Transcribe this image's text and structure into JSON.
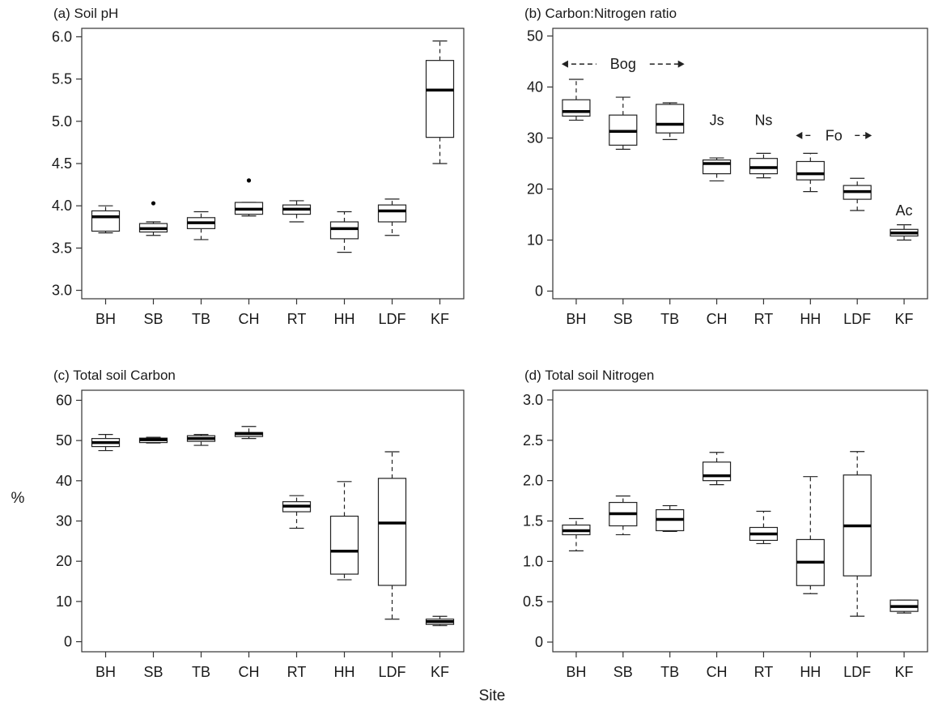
{
  "figure": {
    "shared_x_label": "Site",
    "shared_y_label": "%"
  },
  "chart_data": [
    {
      "type": "box",
      "title": "(a) Soil pH",
      "categories": [
        "BH",
        "SB",
        "TB",
        "CH",
        "RT",
        "HH",
        "LDF",
        "KF"
      ],
      "ylim": [
        2.9,
        6.1
      ],
      "yticks": [
        "3.0",
        "3.5",
        "4.0",
        "4.5",
        "5.0",
        "5.5",
        "6.0"
      ],
      "boxes": [
        {
          "whisker_low": 3.68,
          "q1": 3.7,
          "median": 3.87,
          "q3": 3.94,
          "whisker_high": 4.0
        },
        {
          "whisker_low": 3.65,
          "q1": 3.69,
          "median": 3.73,
          "q3": 3.79,
          "whisker_high": 3.81,
          "outliers": [
            4.03
          ]
        },
        {
          "whisker_low": 3.6,
          "q1": 3.73,
          "median": 3.8,
          "q3": 3.86,
          "whisker_high": 3.93
        },
        {
          "whisker_low": 3.88,
          "q1": 3.9,
          "median": 3.96,
          "q3": 4.04,
          "whisker_high": 4.04,
          "outliers": [
            4.3
          ]
        },
        {
          "whisker_low": 3.81,
          "q1": 3.9,
          "median": 3.96,
          "q3": 4.01,
          "whisker_high": 4.06
        },
        {
          "whisker_low": 3.45,
          "q1": 3.61,
          "median": 3.73,
          "q3": 3.81,
          "whisker_high": 3.93
        },
        {
          "whisker_low": 3.65,
          "q1": 3.81,
          "median": 3.94,
          "q3": 4.01,
          "whisker_high": 4.08
        },
        {
          "whisker_low": 4.5,
          "q1": 4.81,
          "median": 5.37,
          "q3": 5.72,
          "whisker_high": 5.95
        }
      ],
      "annotations": []
    },
    {
      "type": "box",
      "title": "(b) Carbon:Nitrogen ratio",
      "categories": [
        "BH",
        "SB",
        "TB",
        "CH",
        "RT",
        "HH",
        "LDF",
        "KF"
      ],
      "ylim": [
        -1.5,
        51.5
      ],
      "yticks": [
        "0",
        "10",
        "20",
        "30",
        "40",
        "50"
      ],
      "boxes": [
        {
          "whisker_low": 33.5,
          "q1": 34.3,
          "median": 35.2,
          "q3": 37.5,
          "whisker_high": 41.5
        },
        {
          "whisker_low": 27.8,
          "q1": 28.6,
          "median": 31.3,
          "q3": 34.5,
          "whisker_high": 38.0
        },
        {
          "whisker_low": 29.7,
          "q1": 31.0,
          "median": 32.7,
          "q3": 36.6,
          "whisker_high": 36.9
        },
        {
          "whisker_low": 21.6,
          "q1": 23.0,
          "median": 25.0,
          "q3": 25.7,
          "whisker_high": 26.1
        },
        {
          "whisker_low": 22.2,
          "q1": 23.0,
          "median": 24.2,
          "q3": 26.0,
          "whisker_high": 27.0
        },
        {
          "whisker_low": 19.5,
          "q1": 21.8,
          "median": 23.0,
          "q3": 25.4,
          "whisker_high": 27.0
        },
        {
          "whisker_low": 15.8,
          "q1": 18.0,
          "median": 19.5,
          "q3": 20.7,
          "whisker_high": 22.1
        },
        {
          "whisker_low": 10.0,
          "q1": 10.8,
          "median": 11.4,
          "q3": 12.1,
          "whisker_high": 13.0
        }
      ],
      "annotations": [
        {
          "text": "Bog",
          "x_from": "BH",
          "x_to": "TB",
          "y": 44.5,
          "arrows": true
        },
        {
          "text": "Js",
          "x": "CH",
          "y": 33.5
        },
        {
          "text": "Ns",
          "x": "RT",
          "y": 33.5
        },
        {
          "text": "Fo",
          "x_from": "HH",
          "x_to": "LDF",
          "y": 30.5,
          "arrows": true
        },
        {
          "text": "Ac",
          "x": "KF",
          "y": 15.8
        }
      ]
    },
    {
      "type": "box",
      "title": "(c) Total soil Carbon",
      "categories": [
        "BH",
        "SB",
        "TB",
        "CH",
        "RT",
        "HH",
        "LDF",
        "KF"
      ],
      "ylim": [
        -2.5,
        62.5
      ],
      "yticks": [
        "0",
        "10",
        "20",
        "30",
        "40",
        "50",
        "60"
      ],
      "boxes": [
        {
          "whisker_low": 47.5,
          "q1": 48.5,
          "median": 49.5,
          "q3": 50.5,
          "whisker_high": 51.5
        },
        {
          "whisker_low": 49.4,
          "q1": 49.5,
          "median": 50.2,
          "q3": 50.6,
          "whisker_high": 50.8
        },
        {
          "whisker_low": 48.8,
          "q1": 49.8,
          "median": 50.5,
          "q3": 51.2,
          "whisker_high": 51.5
        },
        {
          "whisker_low": 50.5,
          "q1": 51.0,
          "median": 51.7,
          "q3": 52.0,
          "whisker_high": 53.5
        },
        {
          "whisker_low": 28.2,
          "q1": 32.3,
          "median": 33.7,
          "q3": 34.8,
          "whisker_high": 36.3
        },
        {
          "whisker_low": 15.4,
          "q1": 16.8,
          "median": 22.5,
          "q3": 31.2,
          "whisker_high": 39.8
        },
        {
          "whisker_low": 5.6,
          "q1": 14.0,
          "median": 29.5,
          "q3": 40.6,
          "whisker_high": 47.2
        },
        {
          "whisker_low": 4.0,
          "q1": 4.3,
          "median": 5.0,
          "q3": 5.6,
          "whisker_high": 6.3
        }
      ],
      "annotations": []
    },
    {
      "type": "box",
      "title": "(d) Total soil Nitrogen",
      "categories": [
        "BH",
        "SB",
        "TB",
        "CH",
        "RT",
        "HH",
        "LDF",
        "KF"
      ],
      "ylim": [
        -0.12,
        3.12
      ],
      "yticks": [
        "0",
        "0.5",
        "1.0",
        "1.5",
        "2.0",
        "2.5",
        "3.0"
      ],
      "boxes": [
        {
          "whisker_low": 1.13,
          "q1": 1.33,
          "median": 1.38,
          "q3": 1.45,
          "whisker_high": 1.53
        },
        {
          "whisker_low": 1.33,
          "q1": 1.44,
          "median": 1.59,
          "q3": 1.73,
          "whisker_high": 1.81
        },
        {
          "whisker_low": 1.37,
          "q1": 1.38,
          "median": 1.52,
          "q3": 1.64,
          "whisker_high": 1.69
        },
        {
          "whisker_low": 1.95,
          "q1": 2.0,
          "median": 2.06,
          "q3": 2.23,
          "whisker_high": 2.35
        },
        {
          "whisker_low": 1.22,
          "q1": 1.26,
          "median": 1.34,
          "q3": 1.42,
          "whisker_high": 1.62
        },
        {
          "whisker_low": 0.6,
          "q1": 0.7,
          "median": 0.99,
          "q3": 1.27,
          "whisker_high": 2.05
        },
        {
          "whisker_low": 0.32,
          "q1": 0.82,
          "median": 1.44,
          "q3": 2.07,
          "whisker_high": 2.36
        },
        {
          "whisker_low": 0.36,
          "q1": 0.38,
          "median": 0.44,
          "q3": 0.52,
          "whisker_high": 0.52
        }
      ],
      "annotations": []
    }
  ]
}
